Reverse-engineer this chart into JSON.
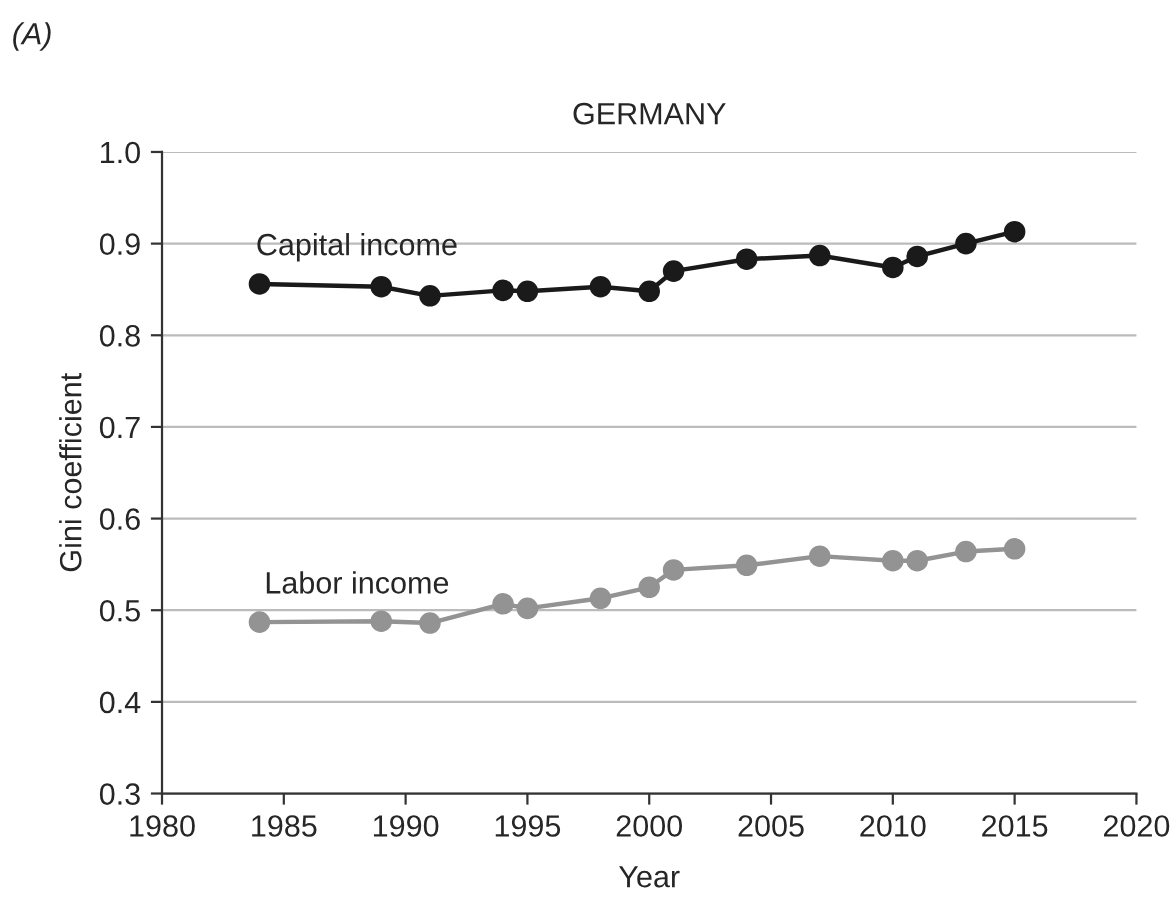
{
  "chart_data": {
    "type": "line",
    "title": "GERMANY",
    "xlabel": "Year",
    "ylabel": "Gini coefficient",
    "annotations": [
      "(A)"
    ],
    "x": [
      1984,
      1989,
      1991,
      1994,
      1995,
      1998,
      2000,
      2001,
      2004,
      2007,
      2010,
      2011,
      2013,
      2015
    ],
    "series": [
      {
        "name": "Capital income",
        "color": "#1a1a1a",
        "values": [
          0.856,
          0.853,
          0.843,
          0.849,
          0.848,
          0.853,
          0.848,
          0.87,
          0.883,
          0.887,
          0.874,
          0.886,
          0.9,
          0.913
        ]
      },
      {
        "name": "Labor income",
        "color": "#939393",
        "values": [
          0.487,
          0.488,
          0.486,
          0.507,
          0.502,
          0.513,
          0.525,
          0.544,
          0.549,
          0.559,
          0.554,
          0.554,
          0.564,
          0.567
        ]
      }
    ],
    "xlim": [
      1980,
      2020
    ],
    "xticks": [
      1980,
      1985,
      1990,
      1995,
      2000,
      2005,
      2010,
      2015,
      2020
    ],
    "ylim": [
      0.3,
      1.0
    ],
    "yticks": [
      {
        "value": 0.3,
        "label": "0.3"
      },
      {
        "value": 0.4,
        "label": "0.4"
      },
      {
        "value": 0.5,
        "label": "0.5"
      },
      {
        "value": 0.6,
        "label": "0.6"
      },
      {
        "value": 0.7,
        "label": "0.7"
      },
      {
        "value": 0.8,
        "label": "0.8"
      },
      {
        "value": 0.9,
        "label": "0.9"
      },
      {
        "value": 1.0,
        "label": "1.0"
      }
    ],
    "grid": "y",
    "marker": "circle",
    "line_style": "solid",
    "legend": false
  }
}
